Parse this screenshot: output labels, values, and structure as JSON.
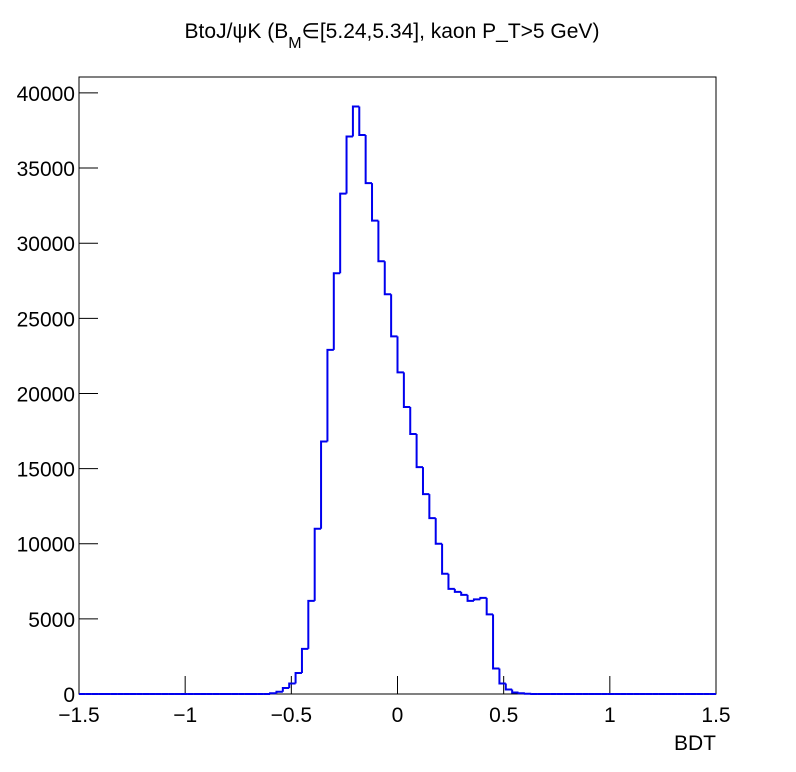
{
  "chart_data": {
    "type": "histogram",
    "title": [
      "BtoJ/ψK (B",
      "M",
      "∈[5.24,5.34], kaon P_T>5 GeV)"
    ],
    "xlabel": "BDT",
    "color": "#0000ee",
    "bins": [
      -1.5,
      -1.47,
      -1.44,
      -1.41,
      -1.38,
      -1.35,
      -1.32,
      -1.29,
      -1.26,
      -1.23,
      -1.2,
      -1.17,
      -1.14,
      -1.11,
      -1.08,
      -1.05,
      -1.02,
      -0.99,
      -0.96,
      -0.93,
      -0.9,
      -0.87,
      -0.84,
      -0.81,
      -0.78,
      -0.75,
      -0.72,
      -0.69,
      -0.66,
      -0.63,
      -0.6,
      -0.57,
      -0.54,
      -0.51,
      -0.48,
      -0.45,
      -0.42,
      -0.39,
      -0.36,
      -0.33,
      -0.3,
      -0.27,
      -0.24,
      -0.21,
      -0.18,
      -0.15,
      -0.12,
      -0.09,
      -0.06,
      -0.03,
      0,
      0.03,
      0.06,
      0.09,
      0.12,
      0.15,
      0.18,
      0.21,
      0.24,
      0.27,
      0.3,
      0.33,
      0.36,
      0.39,
      0.42,
      0.45,
      0.48,
      0.51,
      0.54,
      0.57,
      0.6,
      0.63,
      0.66,
      0.69,
      0.72,
      0.75,
      0.78,
      0.81,
      0.84,
      0.87,
      0.9,
      0.93,
      0.96,
      0.99,
      1.02,
      1.05,
      1.08,
      1.11,
      1.14,
      1.17,
      1.2,
      1.23,
      1.26,
      1.29,
      1.32,
      1.35,
      1.38,
      1.41,
      1.44,
      1.47,
      1.5
    ],
    "values": [
      0,
      0,
      0,
      0,
      0,
      0,
      0,
      0,
      0,
      0,
      0,
      0,
      0,
      0,
      0,
      0,
      0,
      0,
      0,
      0,
      0,
      0,
      0,
      0,
      0,
      0,
      0,
      0,
      0,
      0,
      50,
      150,
      400,
      700,
      1400,
      3000,
      6200,
      11000,
      16800,
      22900,
      28000,
      33300,
      37100,
      39100,
      37200,
      34000,
      31500,
      28800,
      26600,
      23800,
      21400,
      19100,
      17300,
      15100,
      13300,
      11700,
      10000,
      8000,
      7000,
      6800,
      6600,
      6200,
      6300,
      6400,
      5300,
      1700,
      700,
      300,
      100,
      50,
      20,
      0,
      0,
      0,
      0,
      0,
      0,
      0,
      0,
      0,
      0,
      0,
      0,
      0,
      0,
      0,
      0,
      0,
      0,
      0,
      0,
      0,
      0,
      0,
      0,
      0,
      0,
      0,
      0,
      0
    ],
    "xlim": [
      -1.5,
      1.5
    ],
    "xticks": [
      {
        "value": -1.5,
        "label": "−1.5"
      },
      {
        "value": -1,
        "label": "−1"
      },
      {
        "value": -0.5,
        "label": "−0.5"
      },
      0,
      0.5,
      1,
      1.5
    ],
    "ylim": [
      0,
      41060
    ],
    "yticks": [
      0,
      5000,
      10000,
      15000,
      20000,
      25000,
      30000,
      35000,
      40000
    ]
  }
}
